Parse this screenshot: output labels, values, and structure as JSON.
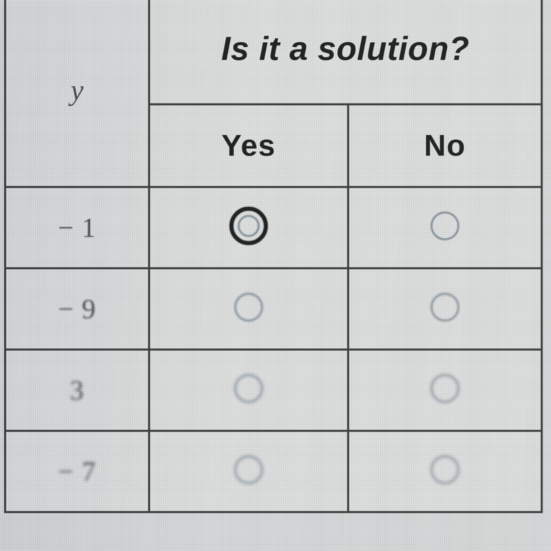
{
  "table": {
    "variable_label": "y",
    "question": "Is it a solution?",
    "yes_label": "Yes",
    "no_label": "No",
    "rows": [
      {
        "value": "− 1",
        "yes_selected": false,
        "yes_focused": true,
        "no_selected": false
      },
      {
        "value": "− 9",
        "yes_selected": false,
        "yes_focused": false,
        "no_selected": false
      },
      {
        "value": "3",
        "yes_selected": false,
        "yes_focused": false,
        "no_selected": false
      },
      {
        "value": "− 7",
        "yes_selected": false,
        "yes_focused": false,
        "no_selected": false
      }
    ],
    "colors": {
      "background": "#dfe1e0",
      "border": "#3a3c3c",
      "header_text": "#1a1c1c",
      "value_text": "#4c4e4e",
      "radio_ring": "#8a96a0",
      "radio_focus": "#1a1c1c"
    },
    "fonts": {
      "header_family": "Verdana",
      "header_size_pt": 36,
      "value_family": "Georgia",
      "value_size_pt": 30
    }
  }
}
